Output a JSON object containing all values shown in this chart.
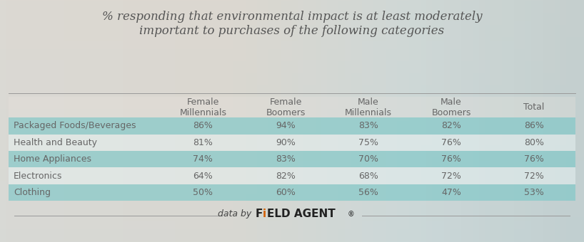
{
  "title_line1": "% responding that environmental impact is at least moderately",
  "title_line2": "important to purchases of the following categories",
  "columns": [
    "Female\nMillennials",
    "Female\nBoomers",
    "Male\nMillennials",
    "Male\nBoomers",
    "Total"
  ],
  "rows": [
    "Packaged Foods/Beverages",
    "Health and Beauty",
    "Home Appliances",
    "Electronics",
    "Clothing"
  ],
  "values": [
    [
      "86%",
      "94%",
      "83%",
      "82%",
      "86%"
    ],
    [
      "81%",
      "90%",
      "75%",
      "76%",
      "80%"
    ],
    [
      "74%",
      "83%",
      "70%",
      "76%",
      "76%"
    ],
    [
      "64%",
      "82%",
      "68%",
      "72%",
      "72%"
    ],
    [
      "50%",
      "60%",
      "56%",
      "47%",
      "53%"
    ]
  ],
  "row_colors_teal": [
    true,
    false,
    true,
    false,
    true
  ],
  "teal_color": "#7ec8c8",
  "light_color": "#e8f4f4",
  "bg_top_color": "#e8e4de",
  "bg_bottom_color": "#d0dde0",
  "header_bg": "#e8e4de",
  "text_color": "#666666",
  "title_color": "#555555",
  "footer_text": "data by ",
  "footer_brand": "FiELD AGENT",
  "footer_trademark": "®",
  "line_color": "#999999",
  "title_fontsize": 12,
  "header_fontsize": 9,
  "cell_fontsize": 9,
  "row_label_fontsize": 9,
  "teal_alpha": 0.65,
  "light_alpha": 0.5
}
